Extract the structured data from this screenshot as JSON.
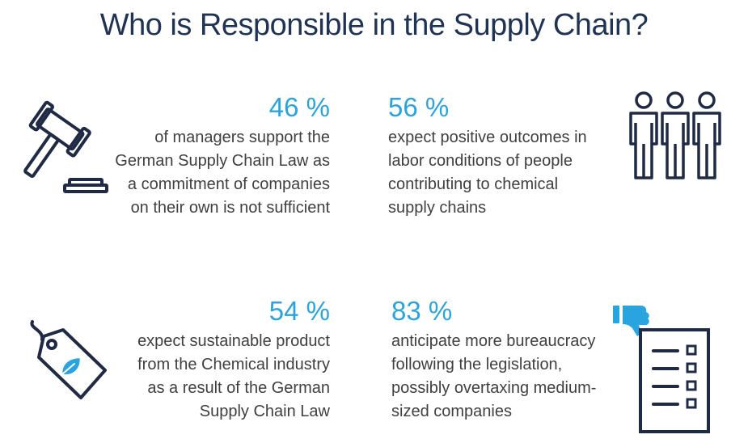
{
  "title": "Who is Responsible in the Supply Chain?",
  "stats": [
    {
      "percent": "46 %",
      "lines": [
        "of managers support the",
        "German Supply Chain Law as",
        "a commitment of companies",
        "on their own is not sufficient"
      ],
      "icon": "gavel-icon"
    },
    {
      "percent": "56 %",
      "lines": [
        "expect positive outcomes in",
        "labor conditions of people",
        "contributing to chemical",
        "supply chains"
      ],
      "icon": "people-icon"
    },
    {
      "percent": "54 %",
      "lines": [
        "expect sustainable product",
        "from the Chemical industry",
        "as a result of the German",
        "Supply Chain Law"
      ],
      "icon": "eco-tag-icon"
    },
    {
      "percent": "83 %",
      "lines": [
        "anticipate more bureaucracy",
        "following the legislation,",
        "possibly overtaxing medium-",
        "sized companies"
      ],
      "icon": "thumbs-down-checklist-icon"
    }
  ],
  "colors": {
    "title": "#1f3354",
    "accent": "#2aa4df",
    "text": "#404040",
    "icon": "#1f2a44"
  }
}
